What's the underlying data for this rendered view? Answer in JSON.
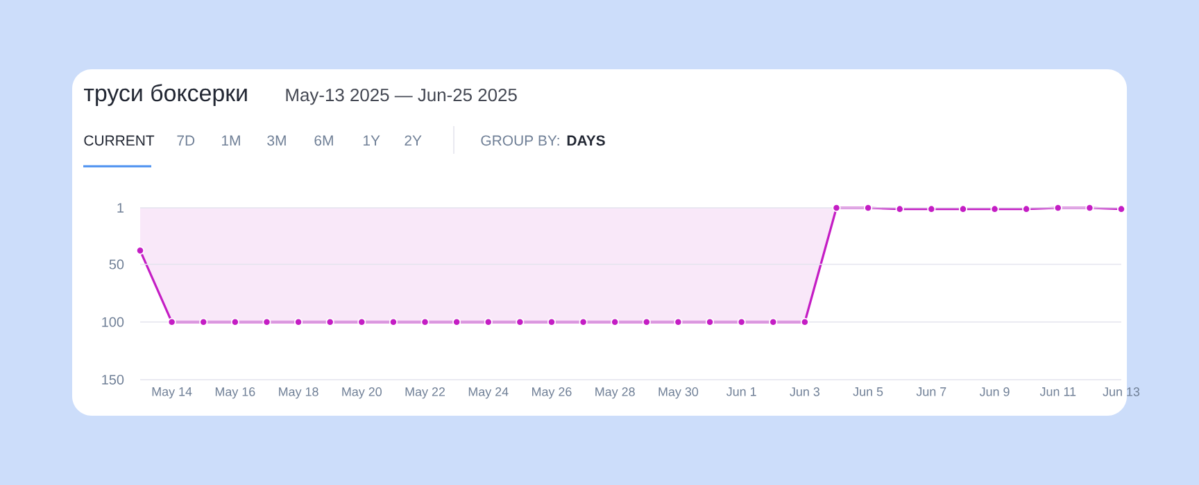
{
  "chart_data": {
    "type": "area",
    "title": "труси боксерки",
    "subtitle": "May-13 2025 — Jun-25 2025",
    "annotations": [
      "CURRENT",
      "7D",
      "1M",
      "3M",
      "6M",
      "1Y",
      "2Y",
      "GROUP BY:",
      "DAYS"
    ],
    "x": [
      "2025-05-13",
      "2025-05-14",
      "2025-05-15",
      "2025-05-16",
      "2025-05-17",
      "2025-05-18",
      "2025-05-19",
      "2025-05-20",
      "2025-05-21",
      "2025-05-22",
      "2025-05-23",
      "2025-05-24",
      "2025-05-25",
      "2025-05-26",
      "2025-05-27",
      "2025-05-28",
      "2025-05-29",
      "2025-05-30",
      "2025-05-31",
      "2025-06-01",
      "2025-06-02",
      "2025-06-03",
      "2025-06-04",
      "2025-06-05",
      "2025-06-06",
      "2025-06-07",
      "2025-06-08",
      "2025-06-09",
      "2025-06-10",
      "2025-06-11",
      "2025-06-12",
      "2025-06-13"
    ],
    "values": [
      38,
      100,
      100,
      100,
      100,
      100,
      100,
      100,
      100,
      100,
      100,
      100,
      100,
      100,
      100,
      100,
      100,
      100,
      100,
      100,
      100,
      100,
      1,
      1,
      2,
      2,
      2,
      2,
      2,
      1,
      1,
      2
    ],
    "color": "#c41dc4",
    "marker": "circle",
    "grid": "y",
    "xlim": [
      "2025-05-13",
      "2025-06-13"
    ],
    "xticks": [
      {
        "value": "2025-05-14",
        "label": "May 14"
      },
      {
        "value": "2025-05-16",
        "label": "May 16"
      },
      {
        "value": "2025-05-18",
        "label": "May 18"
      },
      {
        "value": "2025-05-20",
        "label": "May 20"
      },
      {
        "value": "2025-05-22",
        "label": "May 22"
      },
      {
        "value": "2025-05-24",
        "label": "May 24"
      },
      {
        "value": "2025-05-26",
        "label": "May 26"
      },
      {
        "value": "2025-05-28",
        "label": "May 28"
      },
      {
        "value": "2025-05-30",
        "label": "May 30"
      },
      {
        "value": "2025-06-01",
        "label": "Jun 1"
      },
      {
        "value": "2025-06-03",
        "label": "Jun 3"
      },
      {
        "value": "2025-06-05",
        "label": "Jun 5"
      },
      {
        "value": "2025-06-07",
        "label": "Jun 7"
      },
      {
        "value": "2025-06-09",
        "label": "Jun 9"
      },
      {
        "value": "2025-06-11",
        "label": "Jun 11"
      },
      {
        "value": "2025-06-13",
        "label": "Jun 13"
      }
    ],
    "ylim": [
      150,
      1
    ],
    "yticks": [
      1,
      50,
      100,
      150
    ]
  }
}
